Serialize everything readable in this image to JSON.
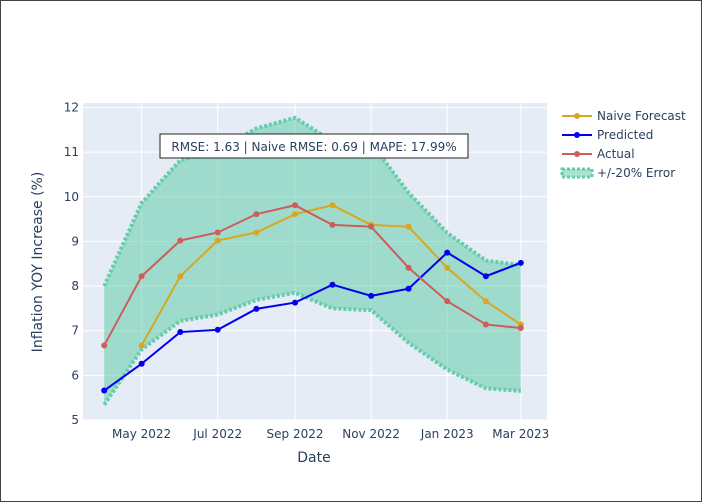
{
  "chart_data": {
    "type": "line",
    "xlabel": "Date",
    "ylabel": "Inflation YOY Increase (%)",
    "ylim": [
      5,
      12.1
    ],
    "y_ticks": [
      5,
      6,
      7,
      8,
      9,
      10,
      11,
      12
    ],
    "x_ticks": [
      {
        "label": "May 2022",
        "date": "2022-05-01"
      },
      {
        "label": "Jul 2022",
        "date": "2022-07-01"
      },
      {
        "label": "Sep 2022",
        "date": "2022-09-01"
      },
      {
        "label": "Nov 2022",
        "date": "2022-11-01"
      },
      {
        "label": "Jan 2023",
        "date": "2023-01-01"
      },
      {
        "label": "Mar 2023",
        "date": "2023-03-01"
      }
    ],
    "xlim": [
      "2022-03-15",
      "2023-03-22"
    ],
    "dates": [
      "2022-04-01",
      "2022-05-01",
      "2022-06-01",
      "2022-07-01",
      "2022-08-01",
      "2022-09-01",
      "2022-10-01",
      "2022-11-01",
      "2022-12-01",
      "2023-01-01",
      "2023-02-01",
      "2023-03-01"
    ],
    "series": [
      {
        "name": "Naive Forecast",
        "color": "#daa520",
        "values": [
          null,
          6.67,
          8.22,
          9.02,
          9.2,
          9.61,
          9.81,
          9.37,
          9.33,
          8.41,
          7.66,
          7.14
        ]
      },
      {
        "name": "Predicted",
        "color": "#0000ee",
        "values": [
          5.66,
          6.26,
          6.97,
          7.02,
          7.49,
          7.63,
          8.03,
          7.78,
          7.94,
          8.75,
          8.22,
          8.52
        ]
      },
      {
        "name": "Actual",
        "color": "#cd5c5c",
        "values": [
          6.67,
          8.22,
          9.02,
          9.2,
          9.61,
          9.81,
          9.37,
          9.33,
          8.41,
          7.66,
          7.14,
          7.06
        ]
      }
    ],
    "error_band": {
      "name": "+/-20% Error",
      "color": "#66cdaa",
      "upper": [
        8.0,
        9.86,
        10.82,
        11.04,
        11.53,
        11.77,
        11.24,
        11.2,
        10.09,
        9.19,
        8.57,
        8.47
      ],
      "lower": [
        5.34,
        6.58,
        7.22,
        7.36,
        7.69,
        7.85,
        7.5,
        7.46,
        6.73,
        6.13,
        5.71,
        5.65
      ]
    },
    "annotation": "RMSE: 1.63 | Naive RMSE: 0.69 | MAPE: 17.99%",
    "legend_position": "top-right",
    "grid": true
  }
}
